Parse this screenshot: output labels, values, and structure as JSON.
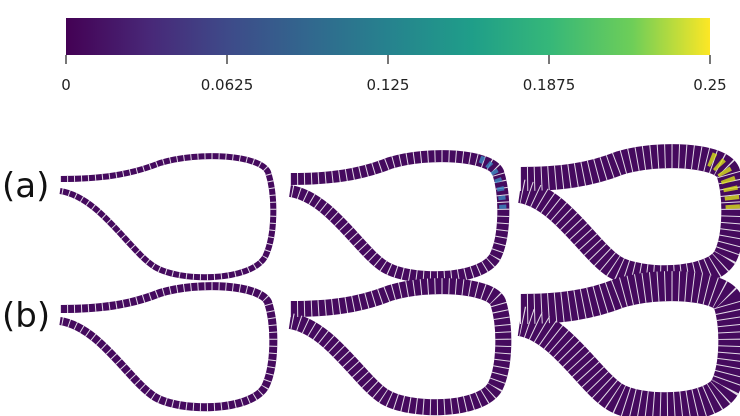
{
  "colorbar": {
    "lim": [
      0,
      0.25
    ],
    "ticks": [
      0,
      0.0625,
      0.125,
      0.1875,
      0.25
    ]
  },
  "rows": [
    {
      "label": "(a)"
    },
    {
      "label": "(b)"
    }
  ]
}
